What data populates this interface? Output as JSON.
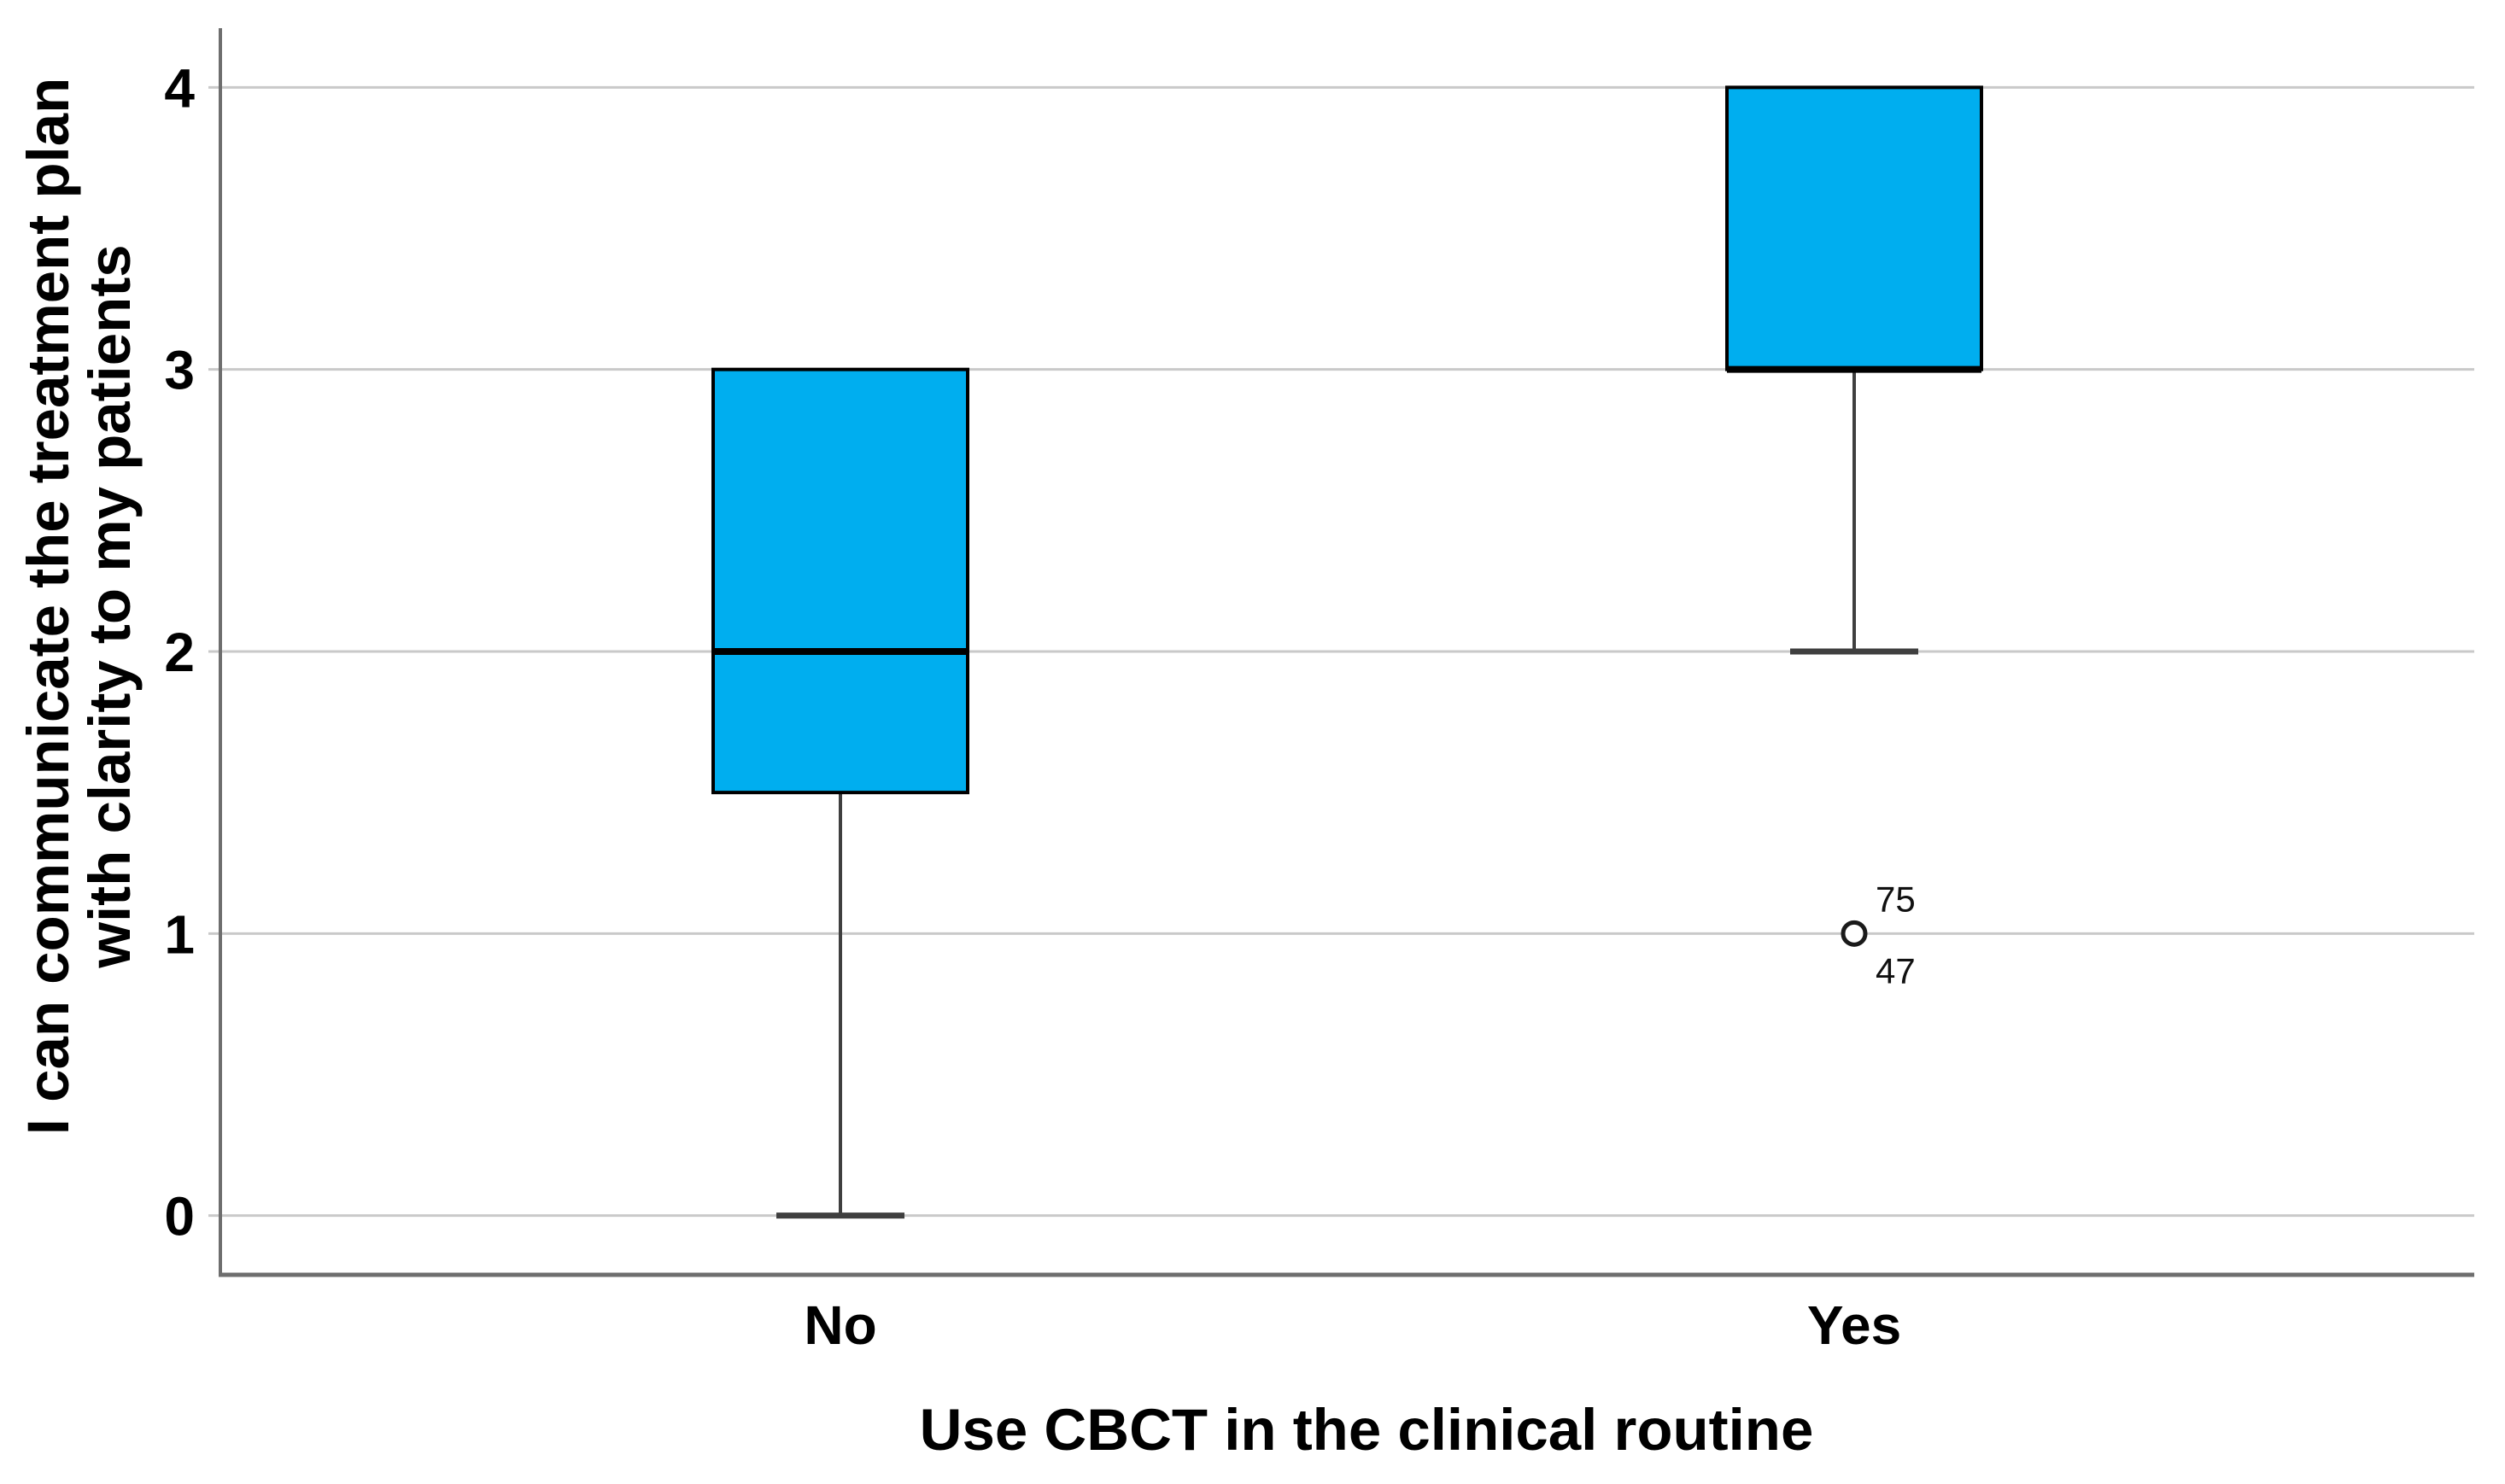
{
  "figure": {
    "background": "#FFFFFF"
  },
  "chart_data": {
    "type": "box",
    "title": "",
    "xlabel": "Use CBCT in the clinical routine",
    "ylabel_lines": [
      "I can communicate the treatment plan",
      "with clarity to my patients"
    ],
    "categories": [
      "No",
      "Yes"
    ],
    "yticks": [
      0,
      1,
      2,
      3,
      4
    ],
    "ylim": [
      -0.21,
      4.21
    ],
    "grid": true,
    "legend": "none",
    "series": [
      {
        "category": "No",
        "whisker_low": 0,
        "q1": 1.5,
        "median": 2,
        "q3": 3,
        "whisker_high": 3,
        "outliers": []
      },
      {
        "category": "Yes",
        "whisker_low": 2,
        "q1": 3,
        "median": 3,
        "q3": 4,
        "whisker_high": 4,
        "outliers": [
          {
            "value": 1,
            "case_labels": [
              "75",
              "47"
            ]
          }
        ]
      }
    ],
    "colors": {
      "box_fill": "#00AEEF",
      "box_stroke": "#000000",
      "median": "#000000",
      "whisker": "#3F3F3F",
      "gridline": "#C9C9C9",
      "axis_line": "#6E6E6E",
      "text": "#000000",
      "outlier_stroke": "#1A1A1A",
      "outlier_fill": "#FFFFFF"
    }
  }
}
